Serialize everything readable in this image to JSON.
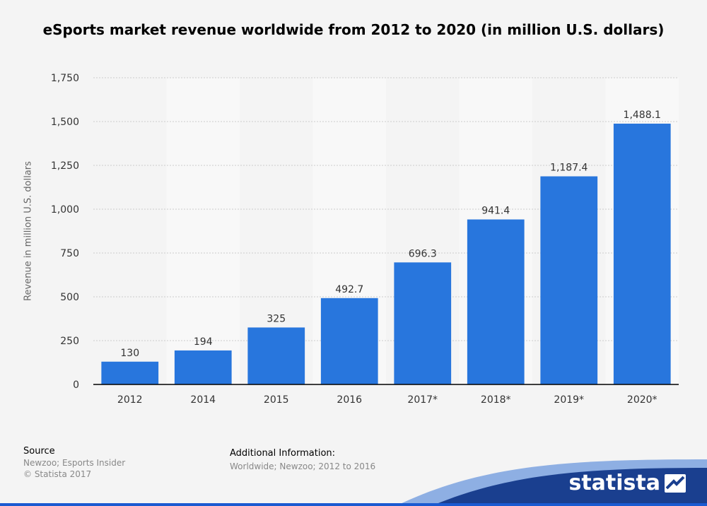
{
  "title": "eSports market revenue worldwide from 2012 to 2020 (in million U.S. dollars)",
  "colors": {
    "bar": "#2876dd",
    "background": "#f4f4f4",
    "band": "#f8f8f8",
    "grid": "#cccccc",
    "brand": "#1a5ad1"
  },
  "chart_data": {
    "type": "bar",
    "title": "eSports market revenue worldwide from 2012 to 2020 (in million U.S. dollars)",
    "xlabel": "",
    "ylabel": "Revenue in million U.S. dollars",
    "categories": [
      "2012",
      "2014",
      "2015",
      "2016",
      "2017*",
      "2018*",
      "2019*",
      "2020*"
    ],
    "values": [
      130,
      194,
      325,
      492.7,
      696.3,
      941.4,
      1187.4,
      1488.1
    ],
    "value_labels": [
      "130",
      "194",
      "325",
      "492.7",
      "696.3",
      "941.4",
      "1,187.4",
      "1,488.1"
    ],
    "ylim": [
      0,
      1750
    ],
    "yticks": [
      0,
      250,
      500,
      750,
      1000,
      1250,
      1500,
      1750
    ],
    "ytick_labels": [
      "0",
      "250",
      "500",
      "750",
      "1,000",
      "1,250",
      "1,500",
      "1,750"
    ],
    "grid": true,
    "legend": "none"
  },
  "footer": {
    "source_heading": "Source",
    "source_line1": "Newzoo; Esports Insider",
    "source_line2": "© Statista 2017",
    "additional_heading": "Additional Information:",
    "additional_text": "Worldwide; Newzoo; 2012 to 2016",
    "brand": "statista"
  }
}
